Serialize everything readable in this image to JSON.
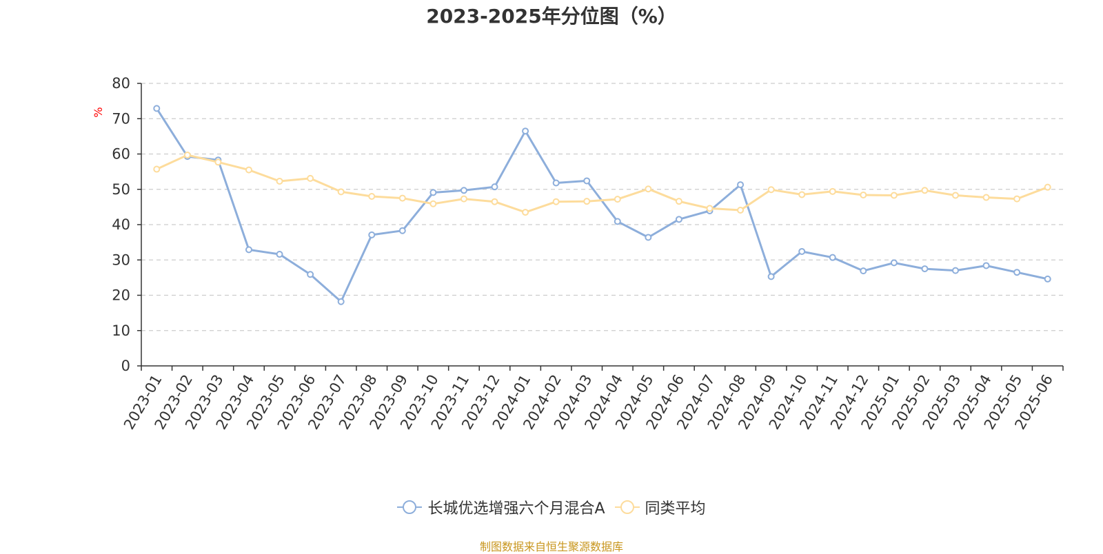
{
  "chart_data": {
    "type": "line",
    "title": "2023-2025年分位图（%）",
    "ylabel": "%",
    "xlabel": "",
    "ylim": [
      0,
      80
    ],
    "yticks": [
      0,
      10,
      20,
      30,
      40,
      50,
      60,
      70,
      80
    ],
    "grid": true,
    "legend_position": "bottom",
    "categories": [
      "2023-01",
      "2023-02",
      "2023-03",
      "2023-04",
      "2023-05",
      "2023-06",
      "2023-07",
      "2023-08",
      "2023-09",
      "2023-10",
      "2023-11",
      "2023-12",
      "2024-01",
      "2024-02",
      "2024-03",
      "2024-04",
      "2024-05",
      "2024-06",
      "2024-07",
      "2024-08",
      "2024-09",
      "2024-10",
      "2024-11",
      "2024-12",
      "2025-01",
      "2025-02",
      "2025-03",
      "2025-04",
      "2025-05",
      "2025-06"
    ],
    "series": [
      {
        "name": "长城优选增强六个月混合A",
        "color": "#8DAEDB",
        "values": [
          72.9,
          59.3,
          58.3,
          32.9,
          31.6,
          25.9,
          18.2,
          37.1,
          38.3,
          49.1,
          49.7,
          50.7,
          66.5,
          51.8,
          52.4,
          40.9,
          36.4,
          41.5,
          43.9,
          51.3,
          25.3,
          32.4,
          30.7,
          26.9,
          29.2,
          27.5,
          27.0,
          28.4,
          26.5,
          24.6
        ]
      },
      {
        "name": "同类平均",
        "color": "#FDDC9C",
        "values": [
          55.7,
          59.7,
          57.7,
          55.5,
          52.3,
          53.1,
          49.3,
          48.0,
          47.5,
          45.9,
          47.3,
          46.5,
          43.5,
          46.5,
          46.6,
          47.2,
          50.1,
          46.6,
          44.6,
          44.1,
          49.9,
          48.5,
          49.4,
          48.4,
          48.3,
          49.7,
          48.3,
          47.7,
          47.3,
          50.6
        ]
      }
    ]
  },
  "source_text": "制图数据来自恒生聚源数据库",
  "colors": {
    "ylabel": "#FF0000",
    "source": "#C8961E",
    "axis": "#333333",
    "grid": "#CCCCCC",
    "text": "#333333"
  }
}
